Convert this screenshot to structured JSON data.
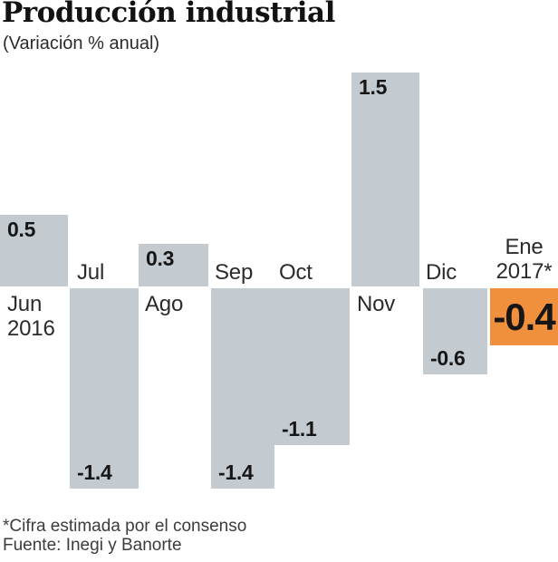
{
  "title": "Producción industrial",
  "subtitle": "(Variación % anual)",
  "footnote": "*Cifra estimada por el consenso",
  "source": "Fuente: Inegi y Banorte",
  "colors": {
    "bar": "#c3cbd1",
    "highlight": "#f0903c",
    "label_text": "#2b2b2b",
    "value_text": "#161616"
  },
  "chart_data": {
    "type": "bar",
    "title": "Producción industrial",
    "subtitle": "(Variación % anual)",
    "unit": "Variación % anual",
    "categories": [
      "Jun 2016",
      "Jul",
      "Ago",
      "Sep",
      "Oct",
      "Nov",
      "Dic",
      "Ene 2017*"
    ],
    "values": [
      0.5,
      -1.4,
      0.3,
      -1.4,
      -1.1,
      1.5,
      -0.6,
      -0.4
    ],
    "value_labels": [
      "0.5",
      "-1.4",
      "0.3",
      "-1.4",
      "-1.1",
      "1.5",
      "-0.6",
      "-0.4"
    ],
    "label_lines": [
      [
        "Jun",
        "2016"
      ],
      [
        "Jul"
      ],
      [
        "Ago"
      ],
      [
        "Sep"
      ],
      [
        "Oct"
      ],
      [
        "Nov"
      ],
      [
        "Dic"
      ],
      [
        "Ene",
        "2017*"
      ]
    ],
    "highlight_index": 7,
    "highlight_value": "-0.4",
    "footnote": "*Cifra estimada por el consenso",
    "source": "Fuente: Inegi y Banorte",
    "ylim": [
      -1.5,
      1.6
    ],
    "baseline": 0,
    "grid": false,
    "legend": false
  }
}
